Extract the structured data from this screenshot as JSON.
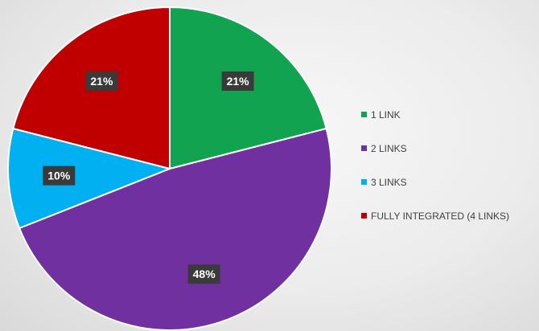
{
  "chart_data": {
    "type": "pie",
    "categories": [
      "1 LINK",
      "2 LINKS",
      "3 LINKS",
      "FULLY INTEGRATED (4 LINKS)"
    ],
    "values": [
      21,
      48,
      10,
      21
    ],
    "data_labels": [
      "21%",
      "48%",
      "10%",
      "21%"
    ],
    "colors": [
      "#11a34f",
      "#7030a0",
      "#00b0f0",
      "#c00000"
    ],
    "start_angle_deg": 0,
    "direction": "clockwise",
    "legend_placement": "right",
    "title": ""
  }
}
